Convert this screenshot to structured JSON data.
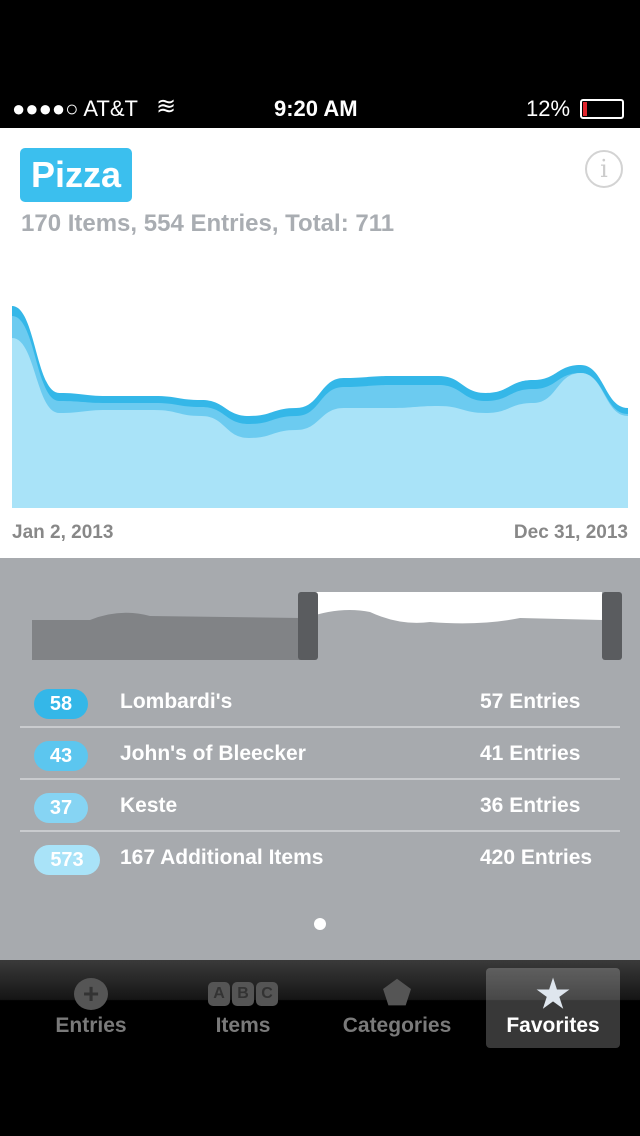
{
  "status": {
    "carrier": "●●●●○ AT&T",
    "time": "9:20 AM",
    "battery": "12%",
    "battery_level": 0.12
  },
  "header": {
    "title": "Pizza",
    "subtitle": "170 Items, 554 Entries, Total: 711",
    "info_icon": "info-icon"
  },
  "chart_data": {
    "type": "area",
    "x_start": "Jan 2, 2013",
    "x_end": "Dec 31, 2013",
    "series": [
      {
        "name": "Lombardi's",
        "values": [
          10,
          8,
          7,
          7,
          7,
          8,
          8,
          9,
          9,
          9,
          8,
          9,
          8,
          6
        ]
      },
      {
        "name": "John's of Bleecker",
        "values": [
          22,
          12,
          7,
          7,
          9,
          14,
          14,
          21,
          23,
          21,
          12,
          14,
          0,
          2
        ]
      },
      {
        "name": "Keste + Additional",
        "values": [
          170,
          95,
          98,
          98,
          92,
          70,
          78,
          100,
          100,
          102,
          95,
          105,
          135,
          92
        ]
      }
    ],
    "colors": [
      "#34b7e8",
      "#6ccbf0",
      "#a9e3f8"
    ]
  },
  "list": [
    {
      "badge": "58",
      "name": "Lombardi's",
      "entries": "57 Entries",
      "color": "#34b7e8"
    },
    {
      "badge": "43",
      "name": "John's of Bleecker",
      "entries": "41 Entries",
      "color": "#5cc6ef"
    },
    {
      "badge": "37",
      "name": "Keste",
      "entries": "36 Entries",
      "color": "#86d4f3"
    },
    {
      "badge": "573",
      "name": "167 Additional Items",
      "entries": "420 Entries",
      "color": "#a9e3f8"
    }
  ],
  "tabs": [
    {
      "label": "Entries"
    },
    {
      "label": "Items"
    },
    {
      "label": "Categories"
    },
    {
      "label": "Favorites"
    }
  ],
  "abc": [
    "A",
    "B",
    "C"
  ]
}
